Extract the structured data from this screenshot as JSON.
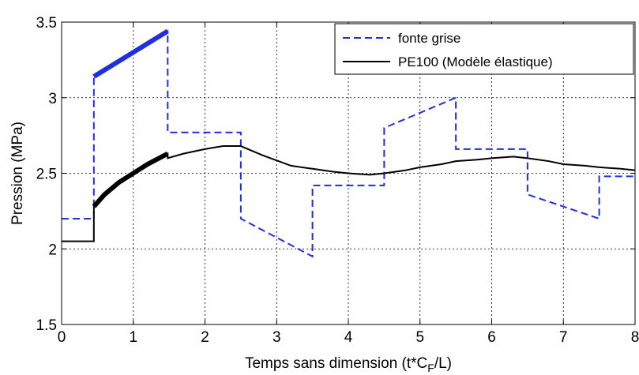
{
  "chart_data": {
    "type": "line",
    "xlabel": "Temps sans dimension (t*C",
    "xlabel_sub": "F",
    "xlabel_end": "/L)",
    "ylabel": "Pression (MPa)",
    "xlim": [
      0,
      8
    ],
    "ylim": [
      1.5,
      3.5
    ],
    "xticks": [
      0,
      1,
      2,
      3,
      4,
      5,
      6,
      7,
      8
    ],
    "xtick_labels": [
      "0",
      "1",
      "2",
      "3",
      "4",
      "5",
      "6",
      "7",
      "8"
    ],
    "yticks": [
      1.5,
      2,
      2.5,
      3,
      3.5
    ],
    "ytick_labels": [
      "1.5",
      "2",
      "2.5",
      "3",
      "3.5"
    ],
    "grid": true,
    "legend_position": "top-right",
    "series": [
      {
        "name": "fonte grise",
        "color": "#1f2fe0",
        "style": "dashed",
        "x": [
          0,
          0.45,
          0.45,
          1.48,
          1.48,
          2.5,
          2.5,
          3.5,
          3.5,
          4.5,
          4.5,
          5.5,
          5.5,
          6.5,
          6.5,
          7.5,
          7.5,
          8
        ],
        "y": [
          2.2,
          2.2,
          3.14,
          3.44,
          2.77,
          2.77,
          2.2,
          1.95,
          2.42,
          2.42,
          2.8,
          3.0,
          2.66,
          2.66,
          2.36,
          2.2,
          2.48,
          2.48
        ],
        "highlight": {
          "x": [
            0.45,
            1.48
          ],
          "y": [
            3.14,
            3.44
          ]
        }
      },
      {
        "name": "PE100 (Modèle élastique)",
        "color": "#000000",
        "style": "solid",
        "x": [
          0,
          0.45,
          0.45,
          0.6,
          0.8,
          1.0,
          1.2,
          1.48,
          1.48,
          1.7,
          2.0,
          2.25,
          2.5,
          2.8,
          3.2,
          3.5,
          3.8,
          4.0,
          4.3,
          4.5,
          4.8,
          5.0,
          5.3,
          5.5,
          5.8,
          6.0,
          6.3,
          6.5,
          6.8,
          7.0,
          7.3,
          7.5,
          7.8,
          8.0
        ],
        "y": [
          2.05,
          2.05,
          2.28,
          2.36,
          2.44,
          2.5,
          2.56,
          2.63,
          2.6,
          2.63,
          2.66,
          2.68,
          2.68,
          2.62,
          2.55,
          2.53,
          2.51,
          2.5,
          2.49,
          2.5,
          2.52,
          2.54,
          2.56,
          2.58,
          2.59,
          2.6,
          2.61,
          2.6,
          2.58,
          2.56,
          2.55,
          2.54,
          2.53,
          2.52
        ],
        "highlight": {
          "x": [
            0.45,
            0.6,
            0.8,
            1.0,
            1.2,
            1.48
          ],
          "y": [
            2.28,
            2.36,
            2.44,
            2.5,
            2.56,
            2.63
          ]
        }
      }
    ]
  }
}
